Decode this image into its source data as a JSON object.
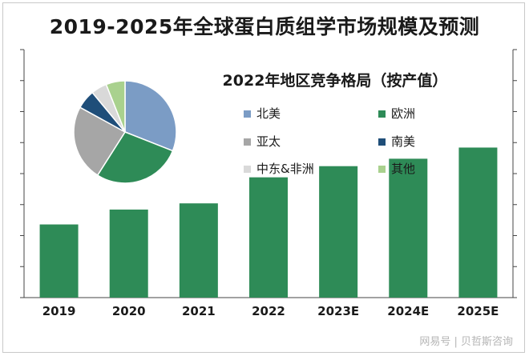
{
  "title": "2019-2025年全球蛋白质组学市场规模及预测",
  "watermark": "网易号 | 贝哲斯咨询",
  "chart_data": [
    {
      "type": "bar",
      "categories": [
        "2019",
        "2020",
        "2021",
        "2022",
        "2023E",
        "2024E",
        "2025E"
      ],
      "values": [
        2.95,
        3.55,
        3.8,
        4.85,
        5.3,
        5.6,
        6.05
      ],
      "ylim": [
        0,
        10
      ],
      "bar_color": "#2e8b57",
      "grid": false
    },
    {
      "type": "pie",
      "title": "2022年地区竞争格局（按产值）",
      "legend_position": "right",
      "slices": [
        {
          "label": "北美",
          "value": 31,
          "color": "#7b9cc5"
        },
        {
          "label": "欧洲",
          "value": 28,
          "color": "#2e8b57"
        },
        {
          "label": "亚太",
          "value": 24,
          "color": "#a6a6a6"
        },
        {
          "label": "南美",
          "value": 6,
          "color": "#1f4e79"
        },
        {
          "label": "中东&非洲",
          "value": 5,
          "color": "#d9d9d9"
        },
        {
          "label": "其他",
          "value": 6,
          "color": "#a9d18e"
        }
      ]
    }
  ]
}
